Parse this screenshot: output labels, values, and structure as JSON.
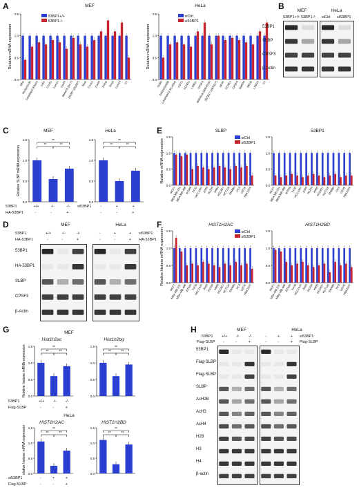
{
  "colors": {
    "ctrl": "#2b3fd1",
    "treat": "#c8262e",
    "sig": "#000000"
  },
  "panels": {
    "A": {
      "label": "A",
      "mef": {
        "title": "MEF",
        "ylabel": "Relative mRNA expression",
        "legend": [
          "53BP1+/+",
          "53BP1-/-"
        ],
        "sig_text": "**"
      },
      "hela": {
        "title": "HeLa",
        "ylabel": "Relative mRNA expression",
        "legend": [
          "siCtrl",
          "si53BP1"
        ],
        "sig_text": "**"
      }
    },
    "B": {
      "label": "B",
      "groups": [
        "MEF",
        "HeLa"
      ],
      "lanes": [
        "53BP1+/+",
        "53BP1-/-",
        "siCtrl",
        "si53BP1"
      ],
      "rows": [
        "53BP1",
        "SLBP",
        "CPSF3",
        "β-Actin"
      ]
    },
    "C": {
      "label": "C",
      "titles": [
        "MEF",
        "HeLa"
      ],
      "ylabel": "Relative SLBP mRNA expression",
      "row1_label": "53BP1",
      "row2_label": "HA-53BP1",
      "row1_label_hela": "si53BP1",
      "mef_row1": [
        "+/+",
        "-/-",
        "-/-"
      ],
      "mef_row2": [
        "-",
        "-",
        "+"
      ],
      "hela_row1": [
        "-",
        "+",
        "+"
      ],
      "hela_row2": [
        "-",
        "-",
        "+"
      ],
      "sig": "**"
    },
    "D": {
      "label": "D",
      "groups": [
        "MEF",
        "HeLa"
      ],
      "cond1_label": "53BP1",
      "cond2_label": "HA-53BP1",
      "cond1_hela": "si53BP1",
      "cond2_hela": "HA-53BP1",
      "mef_c1": [
        "+/+",
        "-/-",
        "-/-"
      ],
      "mef_c2": [
        "-",
        "-",
        "+"
      ],
      "hela_c1": [
        "-",
        "+",
        "+"
      ],
      "hela_c2": [
        "-",
        "-",
        "+"
      ],
      "rows": [
        "53BP1",
        "HA-53BP1",
        "SLBP",
        "CPSF3",
        "β-Actin"
      ]
    },
    "E": {
      "label": "E",
      "titles": [
        "SLBP",
        "53BP1"
      ],
      "ylabel": "Relative mRNA expression",
      "legend": [
        "siCtrl",
        "si53BP1"
      ],
      "ns": "ns"
    },
    "F": {
      "label": "F",
      "titles": [
        "HIST1H2AC",
        "HIST1H2BD"
      ],
      "ylabel": "Relative histone mRNA expression",
      "legend": [
        "siCtrl",
        "si53BP1"
      ]
    },
    "G": {
      "label": "G",
      "mef_title": "MEF",
      "hela_title": "HeLa",
      "genes_mef": [
        "Hist1h2ac",
        "Hist1h2bg"
      ],
      "genes_hela": [
        "HIST1H2AC",
        "HIST1H2BD"
      ],
      "ylabel": "Relative histone mRNA expression",
      "row1_mef": "53BP1",
      "row1_hela": "si53BP1",
      "row2": "Flag-SLBP",
      "mef_row1": [
        "+/+",
        "-/-",
        "-/-"
      ],
      "mef_row2": [
        "-",
        "-",
        "+"
      ],
      "hela_row1": [
        "-",
        "+",
        "+"
      ],
      "hela_row2": [
        "-",
        "-",
        "+"
      ],
      "sig": "**"
    },
    "H": {
      "label": "H",
      "groups": [
        "MEF",
        "HeLa"
      ],
      "cond1_mef": "53BP1",
      "cond1_hela": "si53BP1",
      "cond2": "Flag-SLBP",
      "mef_c1": [
        "+/+",
        "-/-",
        "-/-"
      ],
      "mef_c2": [
        "-",
        "-",
        "+"
      ],
      "hela_c1": [
        "-",
        "+",
        "+"
      ],
      "hela_c2": [
        "-",
        "-",
        "+"
      ],
      "rows": [
        "53BP1",
        "Flag-SLBP",
        "Flag-SLBP",
        "SLBP",
        "AcH2B",
        "AcH3",
        "AcH4",
        "H2B",
        "H3",
        "H4",
        "β-actin"
      ]
    }
  },
  "chart_data": [
    {
      "type": "bar",
      "panel": "A-MEF",
      "categories": [
        "Slbp",
        "Sin3a/Sin3b",
        "Casp8ap2 (Flash)",
        "Cdt1",
        "Ccnd1",
        "Lsm11",
        "Cpsf3",
        "Mirlet7b (let-7)",
        "Zfp367 (Zfp367)",
        "Npat",
        "Ccne1",
        "Cpsf4",
        "Snrpa",
        "Snrpf",
        "Lsm10",
        "U7"
      ],
      "series": [
        {
          "name": "53BP1+/+",
          "values": [
            1.0,
            1.0,
            1.0,
            1.0,
            1.0,
            1.0,
            1.0,
            1.0,
            1.0,
            1.0,
            1.0,
            1.0,
            1.0,
            1.0,
            1.0,
            1.0
          ]
        },
        {
          "name": "53BP1-/-",
          "values": [
            0.45,
            0.75,
            0.85,
            0.8,
            0.9,
            0.85,
            0.7,
            0.95,
            0.8,
            0.75,
            0.9,
            1.1,
            1.35,
            1.1,
            1.3,
            0.5
          ]
        }
      ],
      "ylim": [
        0,
        1.5
      ]
    },
    {
      "type": "bar",
      "panel": "A-HeLa",
      "categories": [
        "SLBP",
        "SIN3A/SIN3B",
        "CASP8AP2 (FLASH)",
        "CDT1",
        "CCND1",
        "LSM11",
        "CPSF3",
        "MIR4516 (MIR4516)",
        "ZBTB17 (ZBTB17)",
        "NPAT",
        "CCNE1",
        "CPSF4",
        "SNRPA",
        "RELB",
        "LSM10",
        "U7"
      ],
      "series": [
        {
          "name": "siCtrl",
          "values": [
            1.0,
            1.0,
            1.0,
            1.0,
            1.0,
            1.0,
            1.0,
            1.0,
            1.0,
            1.0,
            1.0,
            1.0,
            1.0,
            1.0,
            1.0,
            1.0
          ]
        },
        {
          "name": "si53BP1",
          "values": [
            0.5,
            0.8,
            0.85,
            0.8,
            0.75,
            1.1,
            1.3,
            0.8,
            1.0,
            0.9,
            0.95,
            0.9,
            0.85,
            0.8,
            1.1,
            1.3
          ]
        }
      ],
      "ylim": [
        0,
        1.5
      ]
    },
    {
      "type": "bar",
      "panel": "C-MEF",
      "categories": [
        "+/+ / -",
        "-/- / -",
        "-/- / +"
      ],
      "values": [
        1.0,
        0.55,
        0.8
      ],
      "ylim": [
        0,
        1.5
      ]
    },
    {
      "type": "bar",
      "panel": "C-HeLa",
      "categories": [
        "- / -",
        "+ / -",
        "+ / +"
      ],
      "values": [
        1.0,
        0.5,
        0.75
      ],
      "ylim": [
        0,
        1.5
      ]
    },
    {
      "type": "bar",
      "panel": "E-SLBP",
      "categories": [
        "MCF7",
        "MDA-MB-231",
        "MDA-MB-468",
        "BT549",
        "T47D",
        "HCC1937",
        "A549",
        "H1299",
        "H460",
        "HCC827",
        "HCT116",
        "SW480",
        "PC3",
        "U2OS",
        "HEK293T"
      ],
      "series": [
        {
          "name": "siCtrl",
          "values": [
            1,
            1,
            1,
            1,
            1,
            1,
            1,
            1,
            1,
            1,
            1,
            1,
            1,
            1,
            1
          ]
        },
        {
          "name": "si53BP1",
          "values": [
            0.95,
            0.9,
            0.95,
            0.5,
            0.6,
            0.55,
            0.5,
            0.55,
            0.6,
            0.55,
            0.5,
            0.6,
            0.55,
            0.6,
            0.3
          ]
        }
      ],
      "ylim": [
        0,
        1.5
      ]
    },
    {
      "type": "bar",
      "panel": "E-53BP1",
      "categories": [
        "MCF7",
        "MDA-MB-231",
        "MDA-MB-468",
        "BT549",
        "T47D",
        "HCC1937",
        "A549",
        "H1299",
        "H460",
        "HCC827",
        "HCT116",
        "SW480",
        "PC3",
        "U2OS",
        "HEK293T"
      ],
      "series": [
        {
          "name": "siCtrl",
          "values": [
            1,
            1,
            1,
            1,
            1,
            1,
            1,
            1,
            1,
            1,
            1,
            1,
            1,
            1,
            1
          ]
        },
        {
          "name": "si53BP1",
          "values": [
            0.3,
            0.25,
            0.3,
            0.35,
            0.3,
            0.25,
            0.3,
            0.35,
            0.3,
            0.25,
            0.3,
            0.35,
            0.25,
            0.3,
            0.3
          ]
        }
      ],
      "ylim": [
        0,
        1.5
      ]
    },
    {
      "type": "bar",
      "panel": "F-HIST1H2AC",
      "categories": [
        "MCF7",
        "MDA-MB-231",
        "MDA-MB-468",
        "BT549",
        "T47D",
        "HCC1937",
        "A549",
        "H1299",
        "H460",
        "HCC827",
        "HCT116",
        "SW480",
        "PC3",
        "U2OS",
        "HEK293T"
      ],
      "series": [
        {
          "name": "siCtrl",
          "values": [
            1,
            1,
            1,
            1,
            1,
            1,
            1,
            1,
            1,
            1,
            1,
            1,
            1,
            1,
            1
          ]
        },
        {
          "name": "si53BP1",
          "values": [
            1.3,
            0.9,
            0.5,
            0.55,
            0.5,
            0.6,
            0.55,
            0.5,
            0.45,
            0.55,
            0.5,
            0.6,
            0.5,
            0.55,
            0.4
          ]
        }
      ],
      "ylim": [
        0,
        1.5
      ]
    },
    {
      "type": "bar",
      "panel": "F-HIST1H2BD",
      "categories": [
        "MCF7",
        "MDA-MB-231",
        "MDA-MB-468",
        "BT549",
        "T47D",
        "HCC1937",
        "A549",
        "H1299",
        "H460",
        "HCC827",
        "HCT116",
        "SW480",
        "PC3",
        "U2OS",
        "HEK293T"
      ],
      "series": [
        {
          "name": "siCtrl",
          "values": [
            1,
            1,
            1,
            1,
            1,
            1,
            1,
            1,
            1,
            1,
            1,
            1,
            1,
            1,
            1
          ]
        },
        {
          "name": "si53BP1",
          "values": [
            0.95,
            0.9,
            0.6,
            0.5,
            0.55,
            0.6,
            0.5,
            0.45,
            0.5,
            0.55,
            0.3,
            0.6,
            0.5,
            0.55,
            0.45
          ]
        }
      ],
      "ylim": [
        0,
        1.5
      ]
    },
    {
      "type": "bar",
      "panel": "G-Hist1h2ac",
      "categories": [
        "+/+ / -",
        "-/- / -",
        "-/- / +"
      ],
      "values": [
        1.0,
        0.6,
        0.9
      ],
      "ylim": [
        0,
        1.5
      ]
    },
    {
      "type": "bar",
      "panel": "G-Hist1h2bg",
      "categories": [
        "+/+ / -",
        "-/- / -",
        "-/- / +"
      ],
      "values": [
        1.0,
        0.6,
        0.95
      ],
      "ylim": [
        0,
        1.5
      ]
    },
    {
      "type": "bar",
      "panel": "G-HIST1H2AC",
      "categories": [
        "- / -",
        "+ / -",
        "+ / +"
      ],
      "values": [
        1.05,
        0.25,
        0.75
      ],
      "ylim": [
        0,
        1.5
      ]
    },
    {
      "type": "bar",
      "panel": "G-HIST1H2BD",
      "categories": [
        "- / -",
        "+ / -",
        "+ / +"
      ],
      "values": [
        1.1,
        0.3,
        0.95
      ],
      "ylim": [
        0,
        1.5
      ]
    }
  ]
}
